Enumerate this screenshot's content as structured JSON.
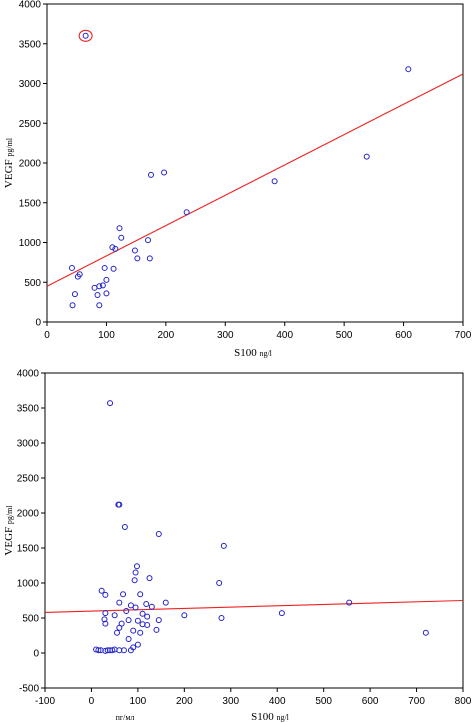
{
  "colors": {
    "points": "#2222cc",
    "fit_line": "#ee2222",
    "highlight": "#ee2222",
    "axes": "#000000"
  },
  "chart_data": [
    {
      "type": "scatter",
      "xlabel": {
        "main": "S100",
        "unit": "ng/l"
      },
      "ylabel": {
        "main": "VEGF",
        "unit": "pg/ml"
      },
      "xlim": [
        0,
        700
      ],
      "ylim": [
        0,
        4000
      ],
      "xticks": [
        0,
        100,
        200,
        300,
        400,
        500,
        600,
        700
      ],
      "yticks": [
        0,
        500,
        1000,
        1500,
        2000,
        2500,
        3000,
        3500,
        4000
      ],
      "grid": false,
      "fit_line": {
        "x": [
          0,
          700
        ],
        "y": [
          450,
          3120
        ]
      },
      "highlighted_point": {
        "x": 65,
        "y": 3600
      },
      "points": [
        [
          65,
          3600
        ],
        [
          608,
          3180
        ],
        [
          538,
          2080
        ],
        [
          383,
          1770
        ],
        [
          197,
          1880
        ],
        [
          175,
          1850
        ],
        [
          235,
          1380
        ],
        [
          122,
          1180
        ],
        [
          125,
          1060
        ],
        [
          110,
          940
        ],
        [
          115,
          920
        ],
        [
          170,
          1030
        ],
        [
          148,
          900
        ],
        [
          152,
          800
        ],
        [
          173,
          800
        ],
        [
          97,
          680
        ],
        [
          112,
          670
        ],
        [
          42,
          680
        ],
        [
          55,
          600
        ],
        [
          52,
          570
        ],
        [
          100,
          530
        ],
        [
          80,
          430
        ],
        [
          88,
          450
        ],
        [
          94,
          460
        ],
        [
          47,
          350
        ],
        [
          85,
          340
        ],
        [
          100,
          360
        ],
        [
          43,
          210
        ],
        [
          88,
          210
        ]
      ]
    },
    {
      "type": "scatter",
      "xlabel": {
        "main": "S100",
        "unit": "ng/l",
        "extra": "пг/мл"
      },
      "ylabel": {
        "main": "VEGF",
        "unit": "pg/ml"
      },
      "xlim": [
        -100,
        800
      ],
      "ylim": [
        -500,
        4000
      ],
      "xticks": [
        -100,
        0,
        100,
        200,
        300,
        400,
        500,
        600,
        700,
        800
      ],
      "yticks": [
        -500,
        0,
        500,
        1000,
        1500,
        2000,
        2500,
        3000,
        3500,
        4000
      ],
      "grid": false,
      "fit_line": {
        "x": [
          -100,
          800
        ],
        "y": [
          580,
          750
        ]
      },
      "points": [
        [
          40,
          3570
        ],
        [
          58,
          2120
        ],
        [
          60,
          2120
        ],
        [
          72,
          1800
        ],
        [
          145,
          1700
        ],
        [
          285,
          1530
        ],
        [
          98,
          1240
        ],
        [
          95,
          1150
        ],
        [
          93,
          1040
        ],
        [
          125,
          1070
        ],
        [
          275,
          1000
        ],
        [
          22,
          890
        ],
        [
          30,
          830
        ],
        [
          68,
          840
        ],
        [
          105,
          840
        ],
        [
          60,
          720
        ],
        [
          160,
          720
        ],
        [
          555,
          720
        ],
        [
          118,
          700
        ],
        [
          85,
          680
        ],
        [
          95,
          650
        ],
        [
          130,
          660
        ],
        [
          30,
          570
        ],
        [
          110,
          560
        ],
        [
          200,
          540
        ],
        [
          410,
          570
        ],
        [
          75,
          600
        ],
        [
          50,
          540
        ],
        [
          120,
          520
        ],
        [
          280,
          500
        ],
        [
          28,
          480
        ],
        [
          80,
          470
        ],
        [
          100,
          460
        ],
        [
          145,
          470
        ],
        [
          65,
          420
        ],
        [
          30,
          420
        ],
        [
          110,
          410
        ],
        [
          120,
          400
        ],
        [
          60,
          360
        ],
        [
          140,
          330
        ],
        [
          90,
          320
        ],
        [
          55,
          290
        ],
        [
          105,
          290
        ],
        [
          720,
          290
        ],
        [
          80,
          200
        ],
        [
          100,
          120
        ],
        [
          90,
          80
        ],
        [
          85,
          40
        ],
        [
          10,
          50
        ],
        [
          15,
          40
        ],
        [
          20,
          40
        ],
        [
          30,
          30
        ],
        [
          35,
          40
        ],
        [
          40,
          40
        ],
        [
          45,
          40
        ],
        [
          50,
          50
        ],
        [
          60,
          40
        ],
        [
          70,
          40
        ]
      ]
    }
  ]
}
